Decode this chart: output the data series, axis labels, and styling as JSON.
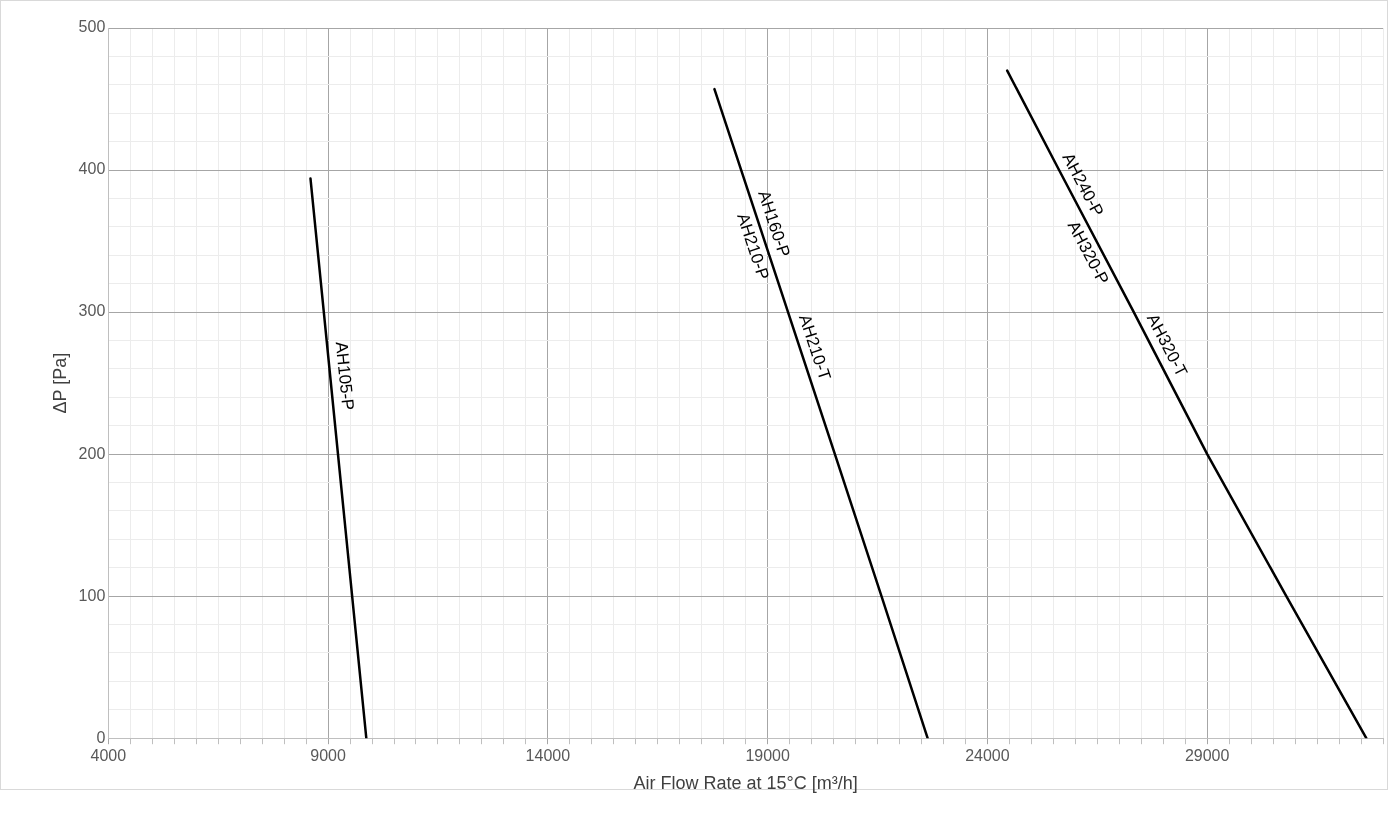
{
  "chart_data": {
    "type": "line",
    "xlabel": "Air Flow Rate at 15°C [m³/h]",
    "ylabel": "ΔP [Pa]",
    "series": [
      {
        "color": "#000000",
        "x": [
          8600,
          9870
        ],
        "values": [
          394,
          0
        ]
      },
      {
        "color": "#000000",
        "x": [
          17790,
          20530,
          21590,
          22640
        ],
        "values": [
          457,
          200,
          100,
          0
        ]
      },
      {
        "color": "#000000",
        "x": [
          24450,
          25630,
          27330,
          29000,
          30800,
          32620
        ],
        "values": [
          470,
          400,
          300,
          200,
          100,
          0
        ]
      }
    ],
    "xlim": [
      4000,
      33000
    ],
    "xticks": [
      4000,
      {
        "value": 4500,
        "label": null
      },
      {
        "value": 5000,
        "label": null
      },
      {
        "value": 5500,
        "label": null
      },
      {
        "value": 6000,
        "label": null
      },
      {
        "value": 6500,
        "label": null
      },
      {
        "value": 7000,
        "label": null
      },
      {
        "value": 7500,
        "label": null
      },
      {
        "value": 8000,
        "label": null
      },
      {
        "value": 8500,
        "label": null
      },
      9000,
      {
        "value": 9500,
        "label": null
      },
      {
        "value": 10000,
        "label": null
      },
      {
        "value": 10500,
        "label": null
      },
      {
        "value": 11000,
        "label": null
      },
      {
        "value": 11500,
        "label": null
      },
      {
        "value": 12000,
        "label": null
      },
      {
        "value": 12500,
        "label": null
      },
      {
        "value": 13000,
        "label": null
      },
      {
        "value": 13500,
        "label": null
      },
      14000,
      {
        "value": 14500,
        "label": null
      },
      {
        "value": 15000,
        "label": null
      },
      {
        "value": 15500,
        "label": null
      },
      {
        "value": 16000,
        "label": null
      },
      {
        "value": 16500,
        "label": null
      },
      {
        "value": 17000,
        "label": null
      },
      {
        "value": 17500,
        "label": null
      },
      {
        "value": 18000,
        "label": null
      },
      {
        "value": 18500,
        "label": null
      },
      19000,
      {
        "value": 19500,
        "label": null
      },
      {
        "value": 20000,
        "label": null
      },
      {
        "value": 20500,
        "label": null
      },
      {
        "value": 21000,
        "label": null
      },
      {
        "value": 21500,
        "label": null
      },
      {
        "value": 22000,
        "label": null
      },
      {
        "value": 22500,
        "label": null
      },
      {
        "value": 23000,
        "label": null
      },
      {
        "value": 23500,
        "label": null
      },
      24000,
      {
        "value": 24500,
        "label": null
      },
      {
        "value": 25000,
        "label": null
      },
      {
        "value": 25500,
        "label": null
      },
      {
        "value": 26000,
        "label": null
      },
      {
        "value": 26500,
        "label": null
      },
      {
        "value": 27000,
        "label": null
      },
      {
        "value": 27500,
        "label": null
      },
      {
        "value": 28000,
        "label": null
      },
      {
        "value": 28500,
        "label": null
      },
      29000,
      {
        "value": 29500,
        "label": null
      },
      {
        "value": 30000,
        "label": null
      },
      {
        "value": 30500,
        "label": null
      },
      {
        "value": 31000,
        "label": null
      },
      {
        "value": 31500,
        "label": null
      },
      {
        "value": 32000,
        "label": null
      },
      {
        "value": 32500,
        "label": null
      },
      {
        "value": 33000,
        "label": null
      }
    ],
    "ylim": [
      0,
      500
    ],
    "yticks": [
      0,
      {
        "value": 20,
        "label": null
      },
      {
        "value": 40,
        "label": null
      },
      {
        "value": 60,
        "label": null
      },
      {
        "value": 80,
        "label": null
      },
      100,
      {
        "value": 120,
        "label": null
      },
      {
        "value": 140,
        "label": null
      },
      {
        "value": 160,
        "label": null
      },
      {
        "value": 180,
        "label": null
      },
      200,
      {
        "value": 220,
        "label": null
      },
      {
        "value": 240,
        "label": null
      },
      {
        "value": 260,
        "label": null
      },
      {
        "value": 280,
        "label": null
      },
      300,
      {
        "value": 320,
        "label": null
      },
      {
        "value": 340,
        "label": null
      },
      {
        "value": 360,
        "label": null
      },
      {
        "value": 380,
        "label": null
      },
      400,
      {
        "value": 420,
        "label": null
      },
      {
        "value": 440,
        "label": null
      },
      {
        "value": 460,
        "label": null
      },
      {
        "value": 480,
        "label": null
      },
      500
    ],
    "grid": true,
    "marker": "none",
    "line_style": "solid",
    "legend": false,
    "annotations": [
      {
        "text": "AH105-P",
        "x": 9051,
        "y": 254
      },
      {
        "text": "AH160-P",
        "x": 18835,
        "y": 359
      },
      {
        "text": "AH210-P",
        "x": 18941,
        "y": 349
      },
      {
        "text": "AH210-T",
        "x": 19762,
        "y": 272
      },
      {
        "text": "AH240-P",
        "x": 25885,
        "y": 385
      },
      {
        "text": "AH320-P",
        "x": 26548,
        "y": 346
      },
      {
        "text": "AH320-T",
        "x": 27798,
        "y": 272
      }
    ]
  }
}
